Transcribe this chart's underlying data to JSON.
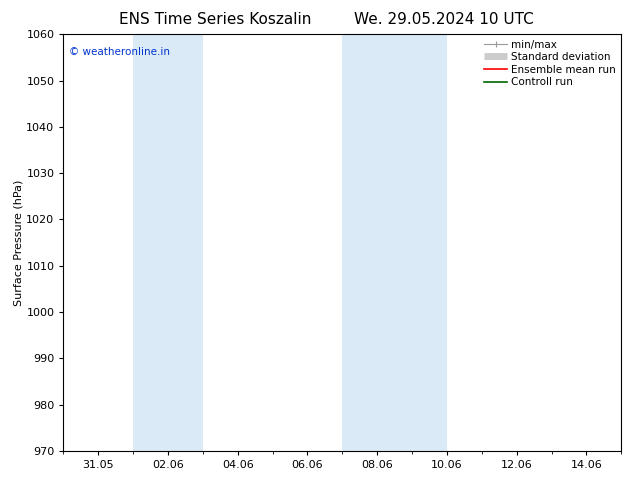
{
  "title_left": "ENS Time Series Koszalin",
  "title_right": "We. 29.05.2024 10 UTC",
  "ylabel": "Surface Pressure (hPa)",
  "ylim": [
    970,
    1060
  ],
  "yticks": [
    970,
    980,
    990,
    1000,
    1010,
    1020,
    1030,
    1040,
    1050,
    1060
  ],
  "xtick_labels": [
    "31.05",
    "02.06",
    "04.06",
    "06.06",
    "08.06",
    "10.06",
    "12.06",
    "14.06"
  ],
  "xtick_positions": [
    1,
    3,
    5,
    7,
    9,
    11,
    13,
    15
  ],
  "xlim": [
    0,
    16
  ],
  "shaded_bands": [
    {
      "x_start": 2.0,
      "x_end": 4.0
    },
    {
      "x_start": 8.0,
      "x_end": 11.0
    }
  ],
  "shade_color": "#daeaf7",
  "watermark": "© weatheronline.in",
  "watermark_color": "#0033cc",
  "legend_items": [
    {
      "label": "min/max",
      "color": "#999999",
      "lw": 1.0
    },
    {
      "label": "Standard deviation",
      "color": "#cccccc",
      "lw": 5
    },
    {
      "label": "Ensemble mean run",
      "color": "#ff0000",
      "lw": 1.0
    },
    {
      "label": "Controll run",
      "color": "#006600",
      "lw": 1.0
    }
  ],
  "bg_color": "#ffffff",
  "title_fontsize": 11,
  "axis_fontsize": 8,
  "tick_fontsize": 8,
  "legend_fontsize": 7.5
}
